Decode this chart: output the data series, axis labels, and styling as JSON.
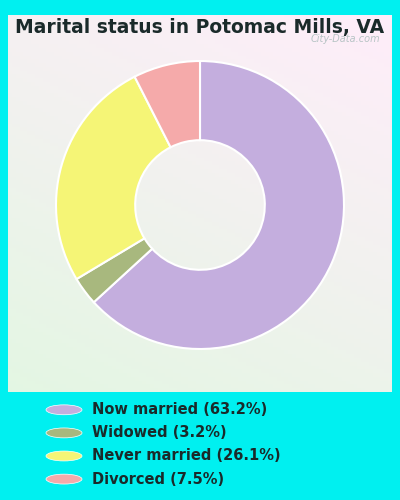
{
  "title": "Marital status in Potomac Mills, VA",
  "slices": [
    63.2,
    3.2,
    26.1,
    7.5
  ],
  "labels": [
    "Now married (63.2%)",
    "Widowed (3.2%)",
    "Never married (26.1%)",
    "Divorced (7.5%)"
  ],
  "colors": [
    "#c4aede",
    "#a8b87e",
    "#f5f576",
    "#f5aaaa"
  ],
  "outer_bg": "#00f0f0",
  "chart_bg_tl": "#e8f5ee",
  "chart_bg_tr": "#f5faee",
  "chart_bg_bl": "#c8e8d5",
  "chart_bg_br": "#e0f0d8",
  "title_color": "#1a2a2a",
  "watermark": "City-Data.com",
  "legend_fontsize": 10.5,
  "title_fontsize": 13.5,
  "donut_width": 0.55,
  "startangle": 90
}
